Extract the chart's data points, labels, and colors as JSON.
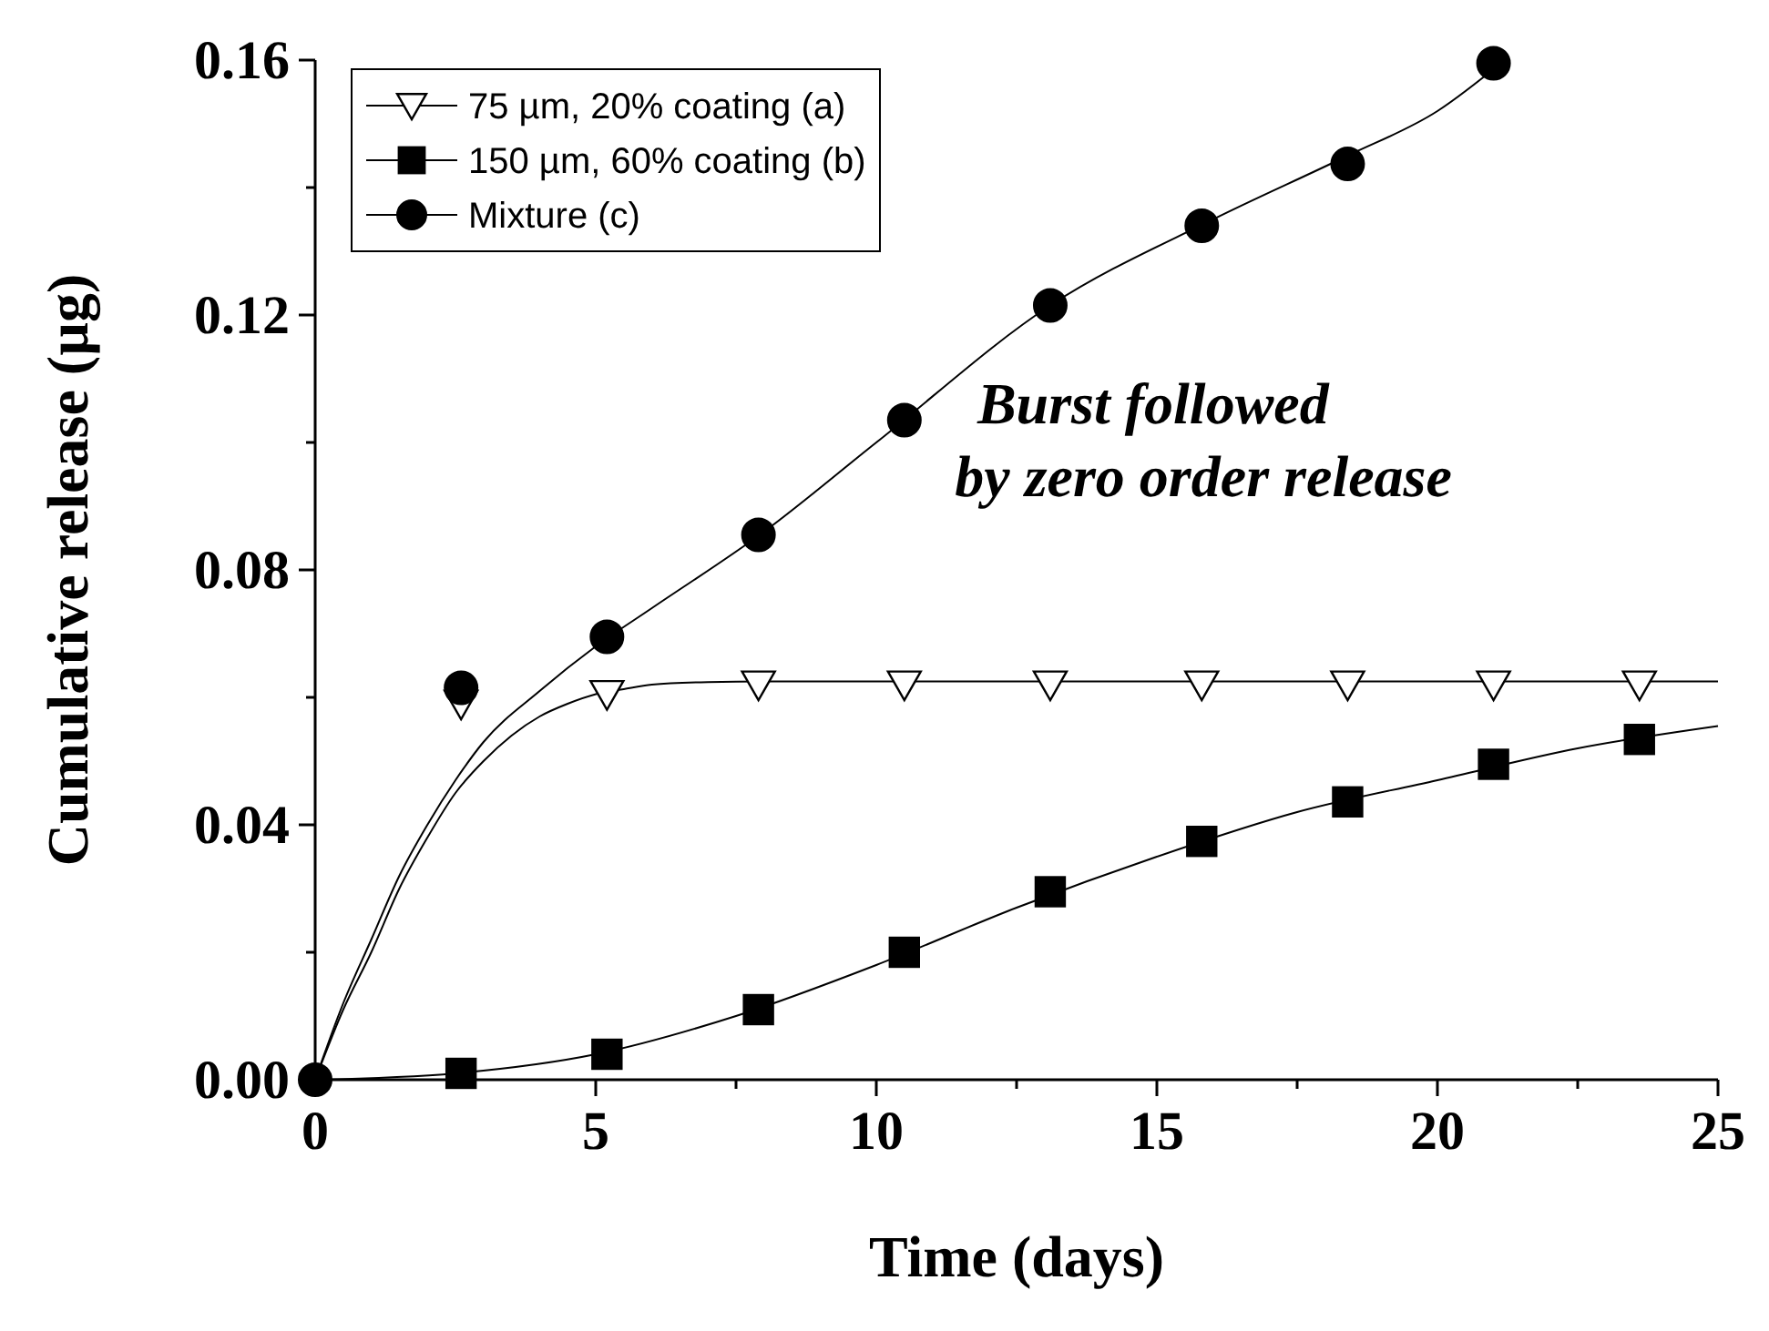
{
  "chart_data": {
    "type": "scatter",
    "xlabel": "Time (days)",
    "ylabel": "Cumulative release (µg)",
    "xlim": [
      0,
      25
    ],
    "ylim": [
      0,
      0.16
    ],
    "xticks": [
      0,
      {
        "value": 2.5,
        "label": null
      },
      5,
      {
        "value": 7.5,
        "label": null
      },
      10,
      {
        "value": 12.5,
        "label": null
      },
      15,
      {
        "value": 17.5,
        "label": null
      },
      20,
      {
        "value": 22.5,
        "label": null
      },
      25
    ],
    "yticks": [
      {
        "value": 0,
        "label": "0.00"
      },
      {
        "value": 0.02,
        "label": null
      },
      {
        "value": 0.04,
        "label": "0.04"
      },
      {
        "value": 0.06,
        "label": null
      },
      {
        "value": 0.08,
        "label": "0.08"
      },
      {
        "value": 0.1,
        "label": null
      },
      {
        "value": 0.12,
        "label": "0.12"
      },
      {
        "value": 0.14,
        "label": null
      },
      {
        "value": 0.16,
        "label": "0.16"
      }
    ],
    "legend": "top left",
    "grid": false,
    "annotations": [
      "Burst followed\nby zero order release"
    ],
    "series": [
      {
        "type": "line",
        "color": "#000000",
        "x": [
          0,
          0.5,
          1,
          1.5,
          2,
          2.5,
          3,
          3.5,
          4,
          4.5,
          5,
          5.5,
          6,
          7,
          8,
          25
        ],
        "values": [
          0,
          0.011,
          0.02,
          0.03,
          0.038,
          0.045,
          0.05,
          0.054,
          0.057,
          0.059,
          0.0605,
          0.0613,
          0.062,
          0.0624,
          0.0625,
          0.0625
        ]
      },
      {
        "type": "line",
        "color": "#000000",
        "x": [
          0,
          2.5,
          5,
          7.5,
          10,
          12.5,
          15,
          17.5,
          20,
          22.5,
          25
        ],
        "values": [
          0,
          0.001,
          0.004,
          0.01,
          0.018,
          0.027,
          0.035,
          0.042,
          0.047,
          0.052,
          0.0555
        ]
      },
      {
        "type": "line",
        "color": "#000000",
        "x": [
          0,
          0.5,
          1,
          1.5,
          2,
          2.5,
          3,
          4,
          5,
          6,
          8,
          10,
          13.1,
          16,
          18.4,
          20,
          21.2
        ],
        "values": [
          0,
          0.012,
          0.022,
          0.032,
          0.04,
          0.047,
          0.053,
          0.061,
          0.068,
          0.074,
          0.086,
          0.1,
          0.1215,
          0.135,
          0.145,
          0.152,
          0.16
        ]
      },
      {
        "name": "75 µm, 20% coating (a)",
        "marker": "triangle",
        "color": "#000000",
        "x": [
          2.6,
          5.2,
          7.9,
          10.5,
          13.1,
          15.8,
          18.4,
          21.0,
          23.6
        ],
        "values": [
          0.059,
          0.0605,
          0.062,
          0.062,
          0.062,
          0.062,
          0.062,
          0.062,
          0.062
        ]
      },
      {
        "name": "150 µm, 60% coating (b)",
        "marker": "square",
        "color": "#000000",
        "x": [
          2.6,
          5.2,
          7.9,
          10.5,
          13.1,
          15.8,
          18.4,
          21.0,
          23.6
        ],
        "values": [
          0.001,
          0.004,
          0.011,
          0.02,
          0.0295,
          0.0374,
          0.0436,
          0.0495,
          0.0534
        ]
      },
      {
        "name": "Mixture (c)",
        "marker": "circle",
        "color": "#000000",
        "x": [
          0,
          2.6,
          5.2,
          7.9,
          10.5,
          13.1,
          15.8,
          18.4,
          21.0
        ],
        "values": [
          0,
          0.0615,
          0.0695,
          0.0855,
          0.1035,
          0.1215,
          0.134,
          0.1437,
          0.1595
        ]
      }
    ]
  }
}
